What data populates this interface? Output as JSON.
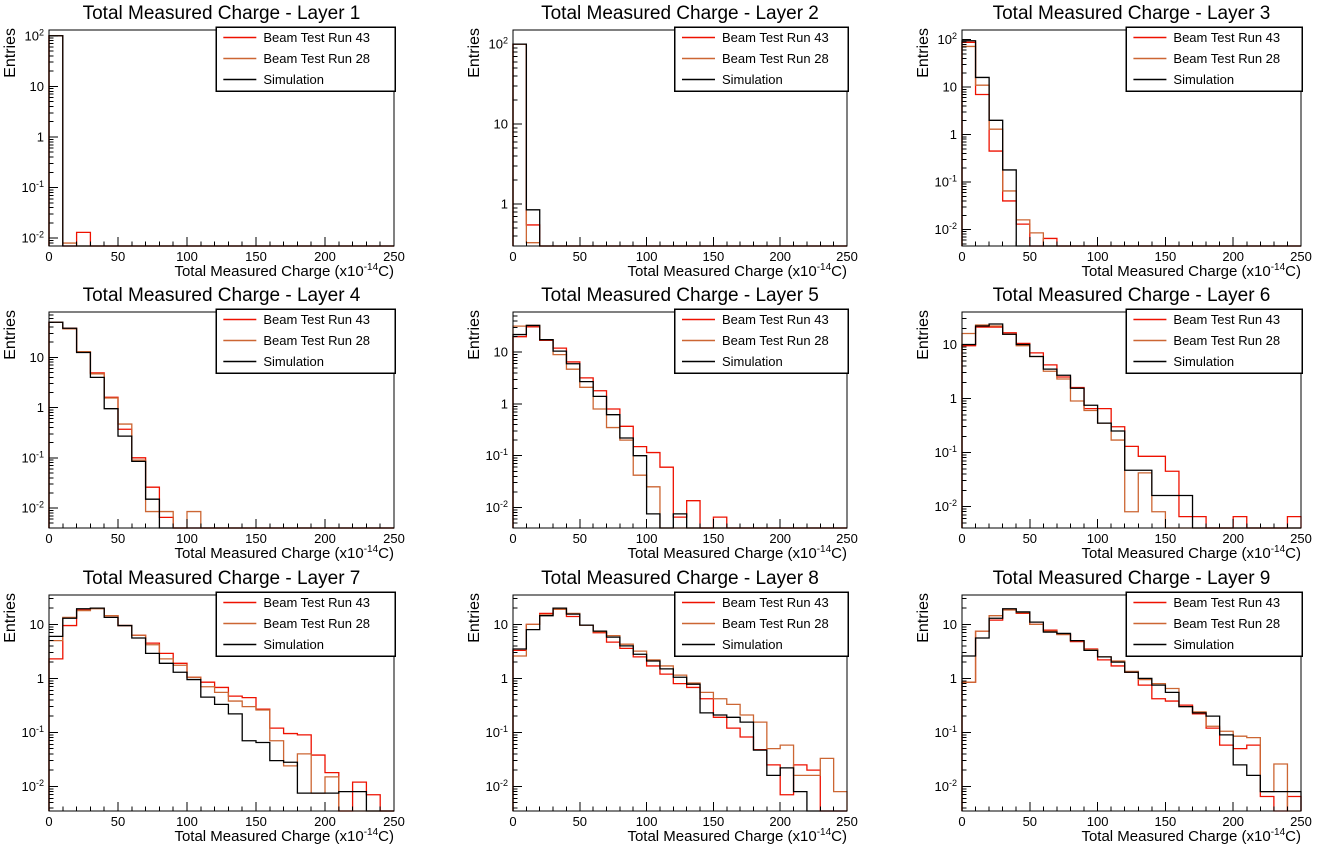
{
  "page": {
    "background": "#ffffff",
    "grid_rows": 3,
    "grid_cols": 3
  },
  "legend": {
    "position": "top-right",
    "items": [
      {
        "label": "Beam Test Run 43",
        "color": "#ee1100"
      },
      {
        "label": "Beam Test Run 28",
        "color": "#cc6633"
      },
      {
        "label": "Simulation",
        "color": "#000000"
      }
    ]
  },
  "axes": {
    "ylabel": "Entries",
    "xlabel_prefix": "Total Measured Charge (x10",
    "xlabel_exponent": "-14",
    "xlabel_suffix": "C)",
    "x_ticks": [
      0,
      50,
      100,
      150,
      200,
      250
    ],
    "x_minor_step": 10,
    "y_scale": "log"
  },
  "chart_data": [
    {
      "type": "bar",
      "subtype": "histogram-step-log",
      "title": "Total Measured Charge - Layer 1",
      "bin_width": 10,
      "x_range": [
        0,
        250
      ],
      "y_range": [
        0.007,
        130
      ],
      "series": [
        {
          "name": "Beam Test Run 43",
          "color": "#ee1100",
          "values": [
            100,
            0,
            0.013,
            0,
            0,
            0,
            0,
            0,
            0,
            0,
            0,
            0,
            0,
            0,
            0,
            0,
            0,
            0,
            0,
            0,
            0,
            0,
            0,
            0,
            0
          ]
        },
        {
          "name": "Beam Test Run 28",
          "color": "#cc6633",
          "values": [
            100,
            0.008,
            0,
            0,
            0,
            0,
            0,
            0,
            0,
            0,
            0,
            0,
            0,
            0,
            0,
            0,
            0,
            0,
            0,
            0,
            0,
            0,
            0,
            0,
            0
          ]
        },
        {
          "name": "Simulation",
          "color": "#000000",
          "values": [
            100,
            0,
            0,
            0,
            0,
            0,
            0,
            0,
            0,
            0,
            0,
            0,
            0,
            0,
            0,
            0,
            0,
            0,
            0,
            0,
            0,
            0,
            0,
            0,
            0
          ]
        }
      ]
    },
    {
      "type": "bar",
      "subtype": "histogram-step-log",
      "title": "Total Measured Charge - Layer 2",
      "bin_width": 10,
      "x_range": [
        0,
        250
      ],
      "y_range": [
        0.3,
        150
      ],
      "series": [
        {
          "name": "Beam Test Run 43",
          "color": "#ee1100",
          "values": [
            100,
            0.55,
            0,
            0,
            0,
            0,
            0,
            0,
            0,
            0,
            0,
            0,
            0,
            0,
            0,
            0,
            0,
            0,
            0,
            0,
            0,
            0,
            0,
            0,
            0
          ]
        },
        {
          "name": "Beam Test Run 28",
          "color": "#cc6633",
          "values": [
            100,
            0.33,
            0,
            0,
            0,
            0,
            0,
            0,
            0,
            0,
            0,
            0,
            0,
            0,
            0,
            0,
            0,
            0,
            0,
            0,
            0,
            0,
            0,
            0,
            0
          ]
        },
        {
          "name": "Simulation",
          "color": "#000000",
          "values": [
            100,
            0.85,
            0,
            0,
            0,
            0,
            0,
            0,
            0,
            0,
            0,
            0,
            0,
            0,
            0,
            0,
            0,
            0,
            0,
            0,
            0,
            0,
            0,
            0,
            0
          ]
        }
      ]
    },
    {
      "type": "bar",
      "subtype": "histogram-step-log",
      "title": "Total Measured Charge - Layer 3",
      "bin_width": 10,
      "x_range": [
        0,
        250
      ],
      "y_range": [
        0.0045,
        160
      ],
      "series": [
        {
          "name": "Beam Test Run 43",
          "color": "#ee1100",
          "values": [
            88,
            7,
            0.45,
            0.04,
            0.013,
            0,
            0.0065,
            0,
            0,
            0,
            0,
            0,
            0,
            0,
            0,
            0,
            0,
            0,
            0,
            0,
            0,
            0,
            0,
            0,
            0
          ]
        },
        {
          "name": "Beam Test Run 28",
          "color": "#cc6633",
          "values": [
            72,
            11,
            1.3,
            0.065,
            0.016,
            0.0085,
            0,
            0,
            0,
            0,
            0,
            0,
            0,
            0,
            0,
            0,
            0,
            0,
            0,
            0,
            0,
            0,
            0,
            0,
            0
          ]
        },
        {
          "name": "Simulation",
          "color": "#000000",
          "values": [
            95,
            16,
            2,
            0.18,
            0,
            0,
            0,
            0,
            0,
            0,
            0,
            0,
            0,
            0,
            0,
            0,
            0,
            0,
            0,
            0,
            0,
            0,
            0,
            0,
            0
          ]
        }
      ]
    },
    {
      "type": "bar",
      "subtype": "histogram-step-log",
      "title": "Total Measured Charge - Layer 4",
      "bin_width": 10,
      "x_range": [
        0,
        250
      ],
      "y_range": [
        0.004,
        80
      ],
      "series": [
        {
          "name": "Beam Test Run 43",
          "color": "#ee1100",
          "values": [
            50,
            38,
            13,
            4.9,
            1.6,
            0.37,
            0.1,
            0.026,
            0.0065,
            0,
            0,
            0,
            0,
            0,
            0,
            0,
            0,
            0,
            0,
            0,
            0,
            0,
            0,
            0,
            0
          ]
        },
        {
          "name": "Beam Test Run 28",
          "color": "#cc6633",
          "values": [
            50,
            37,
            13,
            4.7,
            1.55,
            0.47,
            0.09,
            0.0085,
            0.0085,
            0,
            0.0085,
            0,
            0,
            0,
            0,
            0,
            0,
            0,
            0,
            0,
            0,
            0,
            0,
            0,
            0
          ]
        },
        {
          "name": "Simulation",
          "color": "#000000",
          "values": [
            50,
            38,
            12.5,
            4,
            0.95,
            0.27,
            0.085,
            0.015,
            0,
            0,
            0,
            0,
            0,
            0,
            0,
            0,
            0,
            0,
            0,
            0,
            0,
            0,
            0,
            0,
            0
          ]
        }
      ]
    },
    {
      "type": "bar",
      "subtype": "histogram-step-log",
      "title": "Total Measured Charge - Layer 5",
      "bin_width": 10,
      "x_range": [
        0,
        250
      ],
      "y_range": [
        0.004,
        60
      ],
      "series": [
        {
          "name": "Beam Test Run 43",
          "color": "#ee1100",
          "values": [
            20,
            31,
            17,
            12,
            6.5,
            3.2,
            1.8,
            0.8,
            0.37,
            0.15,
            0.115,
            0.06,
            0.0065,
            0.0135,
            0,
            0.0065,
            0,
            0,
            0,
            0,
            0,
            0,
            0,
            0,
            0
          ]
        },
        {
          "name": "Beam Test Run 28",
          "color": "#cc6633",
          "values": [
            32,
            33,
            17.5,
            9,
            4.7,
            2.1,
            0.8,
            0.35,
            0.2,
            0.042,
            0.025,
            0,
            0,
            0,
            0,
            0,
            0,
            0,
            0,
            0,
            0,
            0,
            0,
            0,
            0
          ]
        },
        {
          "name": "Simulation",
          "color": "#000000",
          "values": [
            22,
            33,
            17.5,
            10.5,
            6,
            2.7,
            1.4,
            0.62,
            0.22,
            0.1,
            0.0075,
            0,
            0.0075,
            0,
            0,
            0,
            0,
            0,
            0,
            0,
            0,
            0,
            0,
            0,
            0
          ]
        }
      ]
    },
    {
      "type": "bar",
      "subtype": "histogram-step-log",
      "title": "Total Measured Charge - Layer 6",
      "bin_width": 10,
      "x_range": [
        0,
        250
      ],
      "y_range": [
        0.004,
        40
      ],
      "series": [
        {
          "name": "Beam Test Run 43",
          "color": "#ee1100",
          "values": [
            9.5,
            21,
            21,
            16.5,
            10.5,
            7,
            4.2,
            2.5,
            1.6,
            0.65,
            0.65,
            0.3,
            0.13,
            0.085,
            0.085,
            0.045,
            0.0065,
            0.0065,
            0,
            0,
            0.0065,
            0,
            0,
            0,
            0.0065
          ]
        },
        {
          "name": "Beam Test Run 28",
          "color": "#cc6633",
          "values": [
            16,
            23,
            22,
            15.5,
            9.5,
            6,
            3.2,
            2.3,
            0.9,
            0.6,
            0.35,
            0.17,
            0.008,
            0.042,
            0.008,
            0,
            0,
            0,
            0,
            0,
            0,
            0,
            0,
            0,
            0
          ]
        },
        {
          "name": "Simulation",
          "color": "#000000",
          "values": [
            10,
            22,
            24,
            15.5,
            10,
            6,
            3.5,
            2.7,
            1.55,
            0.75,
            0.35,
            0.25,
            0.047,
            0.047,
            0.016,
            0.016,
            0.016,
            0,
            0,
            0,
            0,
            0,
            0,
            0,
            0
          ]
        }
      ]
    },
    {
      "type": "bar",
      "subtype": "histogram-step-log",
      "title": "Total Measured Charge - Layer 7",
      "bin_width": 10,
      "x_range": [
        0,
        250
      ],
      "y_range": [
        0.0035,
        35
      ],
      "series": [
        {
          "name": "Beam Test Run 43",
          "color": "#ee1100",
          "values": [
            2.3,
            9.5,
            18.5,
            20,
            14.5,
            9.5,
            6.3,
            4.5,
            2.9,
            1.9,
            1.05,
            0.85,
            0.68,
            0.47,
            0.44,
            0.27,
            0.12,
            0.095,
            0.09,
            0.038,
            0.018,
            0,
            0.012,
            0.007,
            0
          ]
        },
        {
          "name": "Beam Test Run 28",
          "color": "#cc6633",
          "values": [
            5,
            13.5,
            18,
            19.5,
            14.5,
            9.5,
            6.3,
            4.2,
            2.3,
            1.75,
            1.05,
            0.7,
            0.55,
            0.38,
            0.3,
            0.26,
            0.07,
            0.024,
            0.04,
            0.0075,
            0.015,
            0,
            0,
            0,
            0
          ]
        },
        {
          "name": "Simulation",
          "color": "#000000",
          "values": [
            6,
            13,
            19.5,
            20,
            13.5,
            9.5,
            5.6,
            2.9,
            1.9,
            1.3,
            0.95,
            0.45,
            0.33,
            0.22,
            0.07,
            0.065,
            0.03,
            0.028,
            0.0075,
            0.0075,
            0.0075,
            0.008,
            0.008,
            0,
            0
          ]
        }
      ]
    },
    {
      "type": "bar",
      "subtype": "histogram-step-log",
      "title": "Total Measured Charge - Layer 8",
      "bin_width": 10,
      "x_range": [
        0,
        250
      ],
      "y_range": [
        0.0035,
        35
      ],
      "series": [
        {
          "name": "Beam Test Run 43",
          "color": "#ee1100",
          "values": [
            3.3,
            10,
            16,
            20,
            14,
            9.7,
            7,
            4.7,
            3.6,
            2.5,
            1.7,
            1.2,
            0.8,
            0.68,
            0.42,
            0.19,
            0.12,
            0.082,
            0.048,
            0.025,
            0.007,
            0.025,
            0.02,
            0,
            0
          ]
        },
        {
          "name": "Beam Test Run 28",
          "color": "#cc6633",
          "values": [
            2.6,
            10,
            15,
            19,
            16,
            9.7,
            7.3,
            6.2,
            4.3,
            3.2,
            2.2,
            1.7,
            1.15,
            0.82,
            0.55,
            0.42,
            0.33,
            0.21,
            0.155,
            0.05,
            0.058,
            0.016,
            0.016,
            0.033,
            0.008
          ]
        },
        {
          "name": "Simulation",
          "color": "#000000",
          "values": [
            3.5,
            8,
            14.5,
            20,
            15.5,
            9.7,
            7.5,
            5.8,
            4,
            2.8,
            2.1,
            1.5,
            1.05,
            0.78,
            0.23,
            0.21,
            0.19,
            0.155,
            0.047,
            0.016,
            0.022,
            0.008,
            0,
            0,
            0
          ]
        }
      ]
    },
    {
      "type": "bar",
      "subtype": "histogram-step-log",
      "title": "Total Measured Charge - Layer 9",
      "bin_width": 10,
      "x_range": [
        0,
        250
      ],
      "y_range": [
        0.0035,
        35
      ],
      "series": [
        {
          "name": "Beam Test Run 43",
          "color": "#ee1100",
          "values": [
            0.85,
            7.5,
            12,
            19,
            16,
            10,
            7.8,
            6.5,
            4.8,
            3.5,
            2.2,
            1.7,
            1.3,
            0.75,
            0.42,
            0.38,
            0.32,
            0.22,
            0.12,
            0.058,
            0.05,
            0.058,
            0.0065,
            0,
            0.0065
          ]
        },
        {
          "name": "Beam Test Run 28",
          "color": "#cc6633",
          "values": [
            0.85,
            7.5,
            14.5,
            18.5,
            16.5,
            10,
            7.5,
            6.5,
            5,
            3.4,
            2.5,
            2.1,
            1.35,
            0.95,
            0.8,
            0.65,
            0.3,
            0.24,
            0.13,
            0.105,
            0.085,
            0.08,
            0.008,
            0.026,
            0
          ]
        },
        {
          "name": "Simulation",
          "color": "#000000",
          "values": [
            2.6,
            5.6,
            13,
            19.5,
            17,
            11,
            7.2,
            6.8,
            5,
            3.3,
            2.5,
            2,
            1.3,
            1,
            0.75,
            0.55,
            0.3,
            0.23,
            0.2,
            0.09,
            0.025,
            0.016,
            0.008,
            0.008,
            0.008
          ]
        }
      ]
    }
  ]
}
